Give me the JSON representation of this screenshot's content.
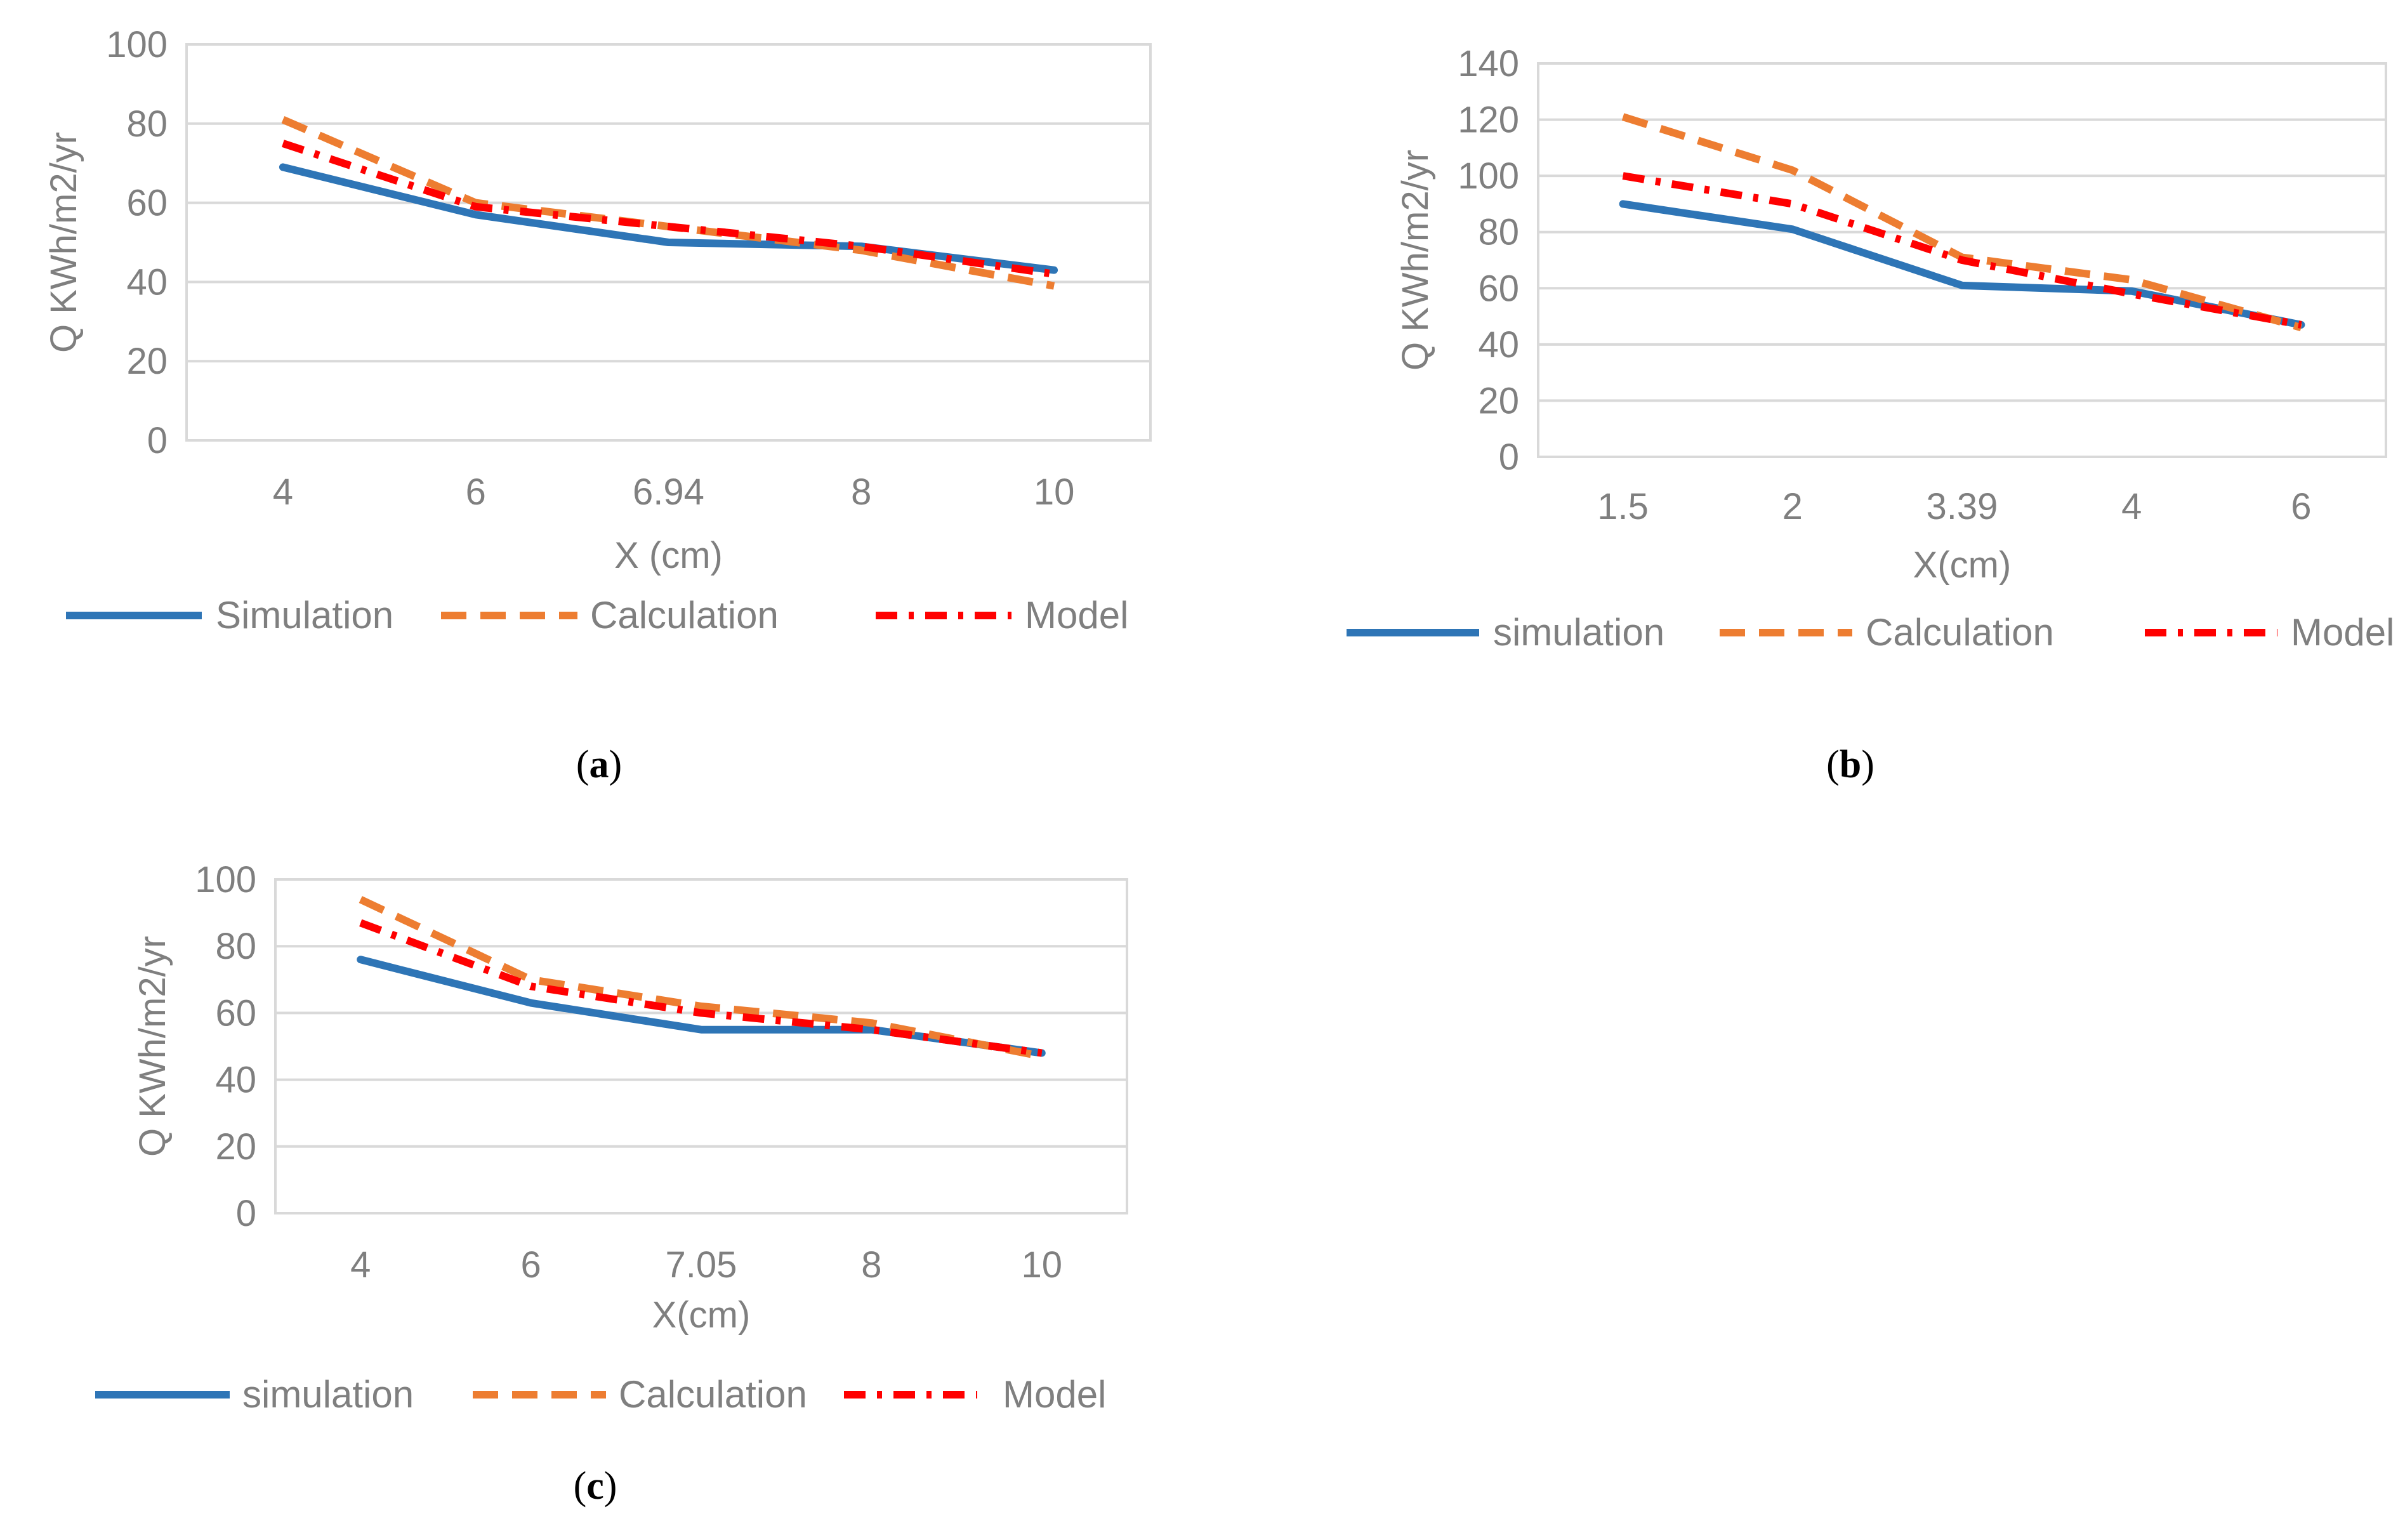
{
  "chart_data": [
    {
      "id": "a",
      "type": "line",
      "caption_letter": "a",
      "categories": [
        "4",
        "6",
        "6.94",
        "8",
        "10"
      ],
      "ylabel": "Q KWh/m2/yr",
      "xlabel": "X (cm)",
      "ylim": [
        0,
        100
      ],
      "yticks": [
        0,
        20,
        40,
        60,
        80,
        100
      ],
      "series": [
        {
          "name": "Simulation",
          "values": [
            69,
            57,
            50,
            49,
            43
          ],
          "color": "#2e75b6",
          "style": "solid"
        },
        {
          "name": "Calculation",
          "values": [
            81,
            60,
            54,
            48,
            39
          ],
          "color": "#ed7d31",
          "style": "dash"
        },
        {
          "name": "Model",
          "values": [
            75,
            59,
            54,
            49,
            42
          ],
          "color": "#ff0000",
          "style": "dashdot"
        }
      ]
    },
    {
      "id": "b",
      "type": "line",
      "caption_letter": "b",
      "categories": [
        "1.5",
        "2",
        "3.39",
        "4",
        "6"
      ],
      "ylabel": "Q KWh/m2/yr",
      "xlabel": "X(cm)",
      "ylim": [
        0,
        140
      ],
      "yticks": [
        0,
        20,
        40,
        60,
        80,
        100,
        120,
        140
      ],
      "series": [
        {
          "name": "simulation",
          "values": [
            90,
            81,
            61,
            59,
            47
          ],
          "color": "#2e75b6",
          "style": "solid"
        },
        {
          "name": "Calculation",
          "values": [
            121,
            102,
            71,
            63,
            46
          ],
          "color": "#ed7d31",
          "style": "dash"
        },
        {
          "name": "Model",
          "values": [
            100,
            90,
            70,
            58,
            47
          ],
          "color": "#ff0000",
          "style": "dashdot"
        }
      ]
    },
    {
      "id": "c",
      "type": "line",
      "caption_letter": "c",
      "categories": [
        "4",
        "6",
        "7.05",
        "8",
        "10"
      ],
      "ylabel": "Q KWh/m2/yr",
      "xlabel": "X(cm)",
      "ylim": [
        0,
        100
      ],
      "yticks": [
        0,
        20,
        40,
        60,
        80,
        100
      ],
      "series": [
        {
          "name": "simulation",
          "values": [
            76,
            63,
            55,
            55,
            48
          ],
          "color": "#2e75b6",
          "style": "solid"
        },
        {
          "name": "Calculation",
          "values": [
            94,
            70,
            62,
            57,
            47
          ],
          "color": "#ed7d31",
          "style": "dash"
        },
        {
          "name": "Model",
          "values": [
            87,
            68,
            60,
            55,
            48
          ],
          "color": "#ff0000",
          "style": "dashdot"
        }
      ]
    }
  ]
}
